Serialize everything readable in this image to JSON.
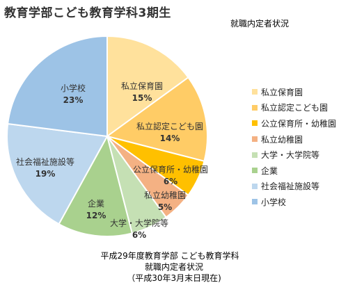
{
  "header": {
    "title": "教育学部こども教育学科3期生",
    "subtitle": "就職内定者状況"
  },
  "caption": {
    "line1": "平成29年度教育学部 こども教育学科",
    "line2": "就職内定者状況",
    "line3": "（平成30年3月末日現在)"
  },
  "chart_data": {
    "type": "pie",
    "title": "教育学部こども教育学科3期生",
    "subtitle": "就職内定者状況",
    "legend_position": "right",
    "start_angle_deg": 0,
    "direction": "clockwise",
    "slices": [
      {
        "label": "私立保育園",
        "value": 15,
        "display": "15%",
        "color": "#FFE19C"
      },
      {
        "label": "私立認定こども園",
        "value": 14,
        "display": "14%",
        "color": "#FFCC66"
      },
      {
        "label": "公立保育所・幼稚園",
        "value": 6,
        "display": "6%",
        "color": "#FFC000"
      },
      {
        "label": "私立幼稚園",
        "value": 5,
        "display": "5%",
        "color": "#F4B183"
      },
      {
        "label": "大学・大学院等",
        "value": 6,
        "display": "6%",
        "color": "#C5E0B4"
      },
      {
        "label": "企業",
        "value": 12,
        "display": "12%",
        "color": "#A9D18E"
      },
      {
        "label": "社会福祉施設等",
        "value": 19,
        "display": "19%",
        "color": "#BDD7EE"
      },
      {
        "label": "小学校",
        "value": 23,
        "display": "23%",
        "color": "#9DC3E6"
      }
    ]
  }
}
